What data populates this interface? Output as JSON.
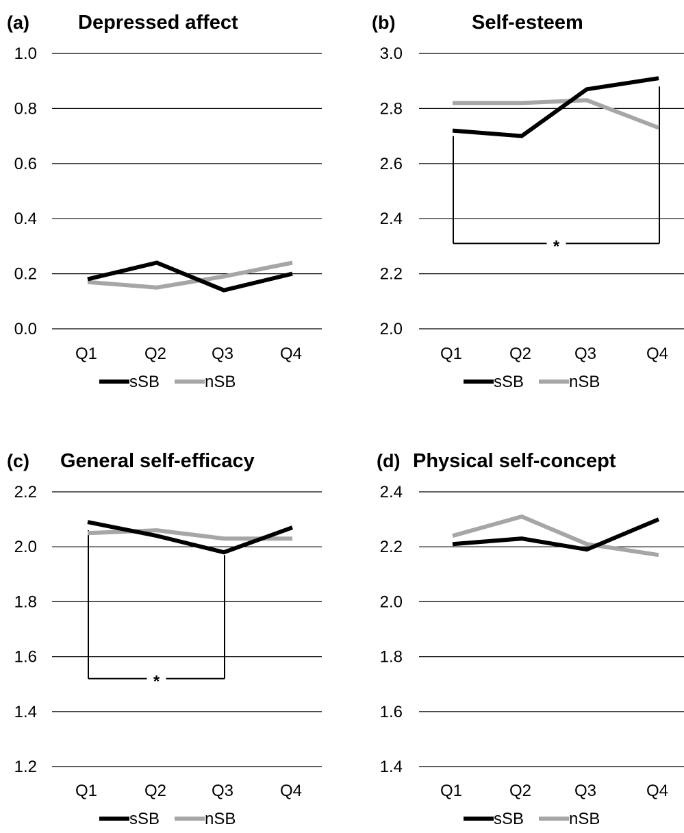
{
  "chart_data": [
    {
      "type": "line",
      "panel": "(a)",
      "title": "Depressed affect",
      "categories": [
        "Q1",
        "Q2",
        "Q3",
        "Q4"
      ],
      "ylim": [
        0.0,
        1.0
      ],
      "yticks": [
        "0.0",
        "0.2",
        "0.4",
        "0.6",
        "0.8",
        "1.0"
      ],
      "grid": true,
      "legend_position": "bottom",
      "series": [
        {
          "name": "sSB",
          "color": "#000000",
          "values": [
            0.18,
            0.24,
            0.14,
            0.2
          ]
        },
        {
          "name": "nSB",
          "color": "#a6a6a6",
          "values": [
            0.17,
            0.15,
            0.19,
            0.24
          ]
        }
      ],
      "significance": []
    },
    {
      "type": "line",
      "panel": "(b)",
      "title": "Self-esteem",
      "categories": [
        "Q1",
        "Q2",
        "Q3",
        "Q4"
      ],
      "ylim": [
        2.0,
        3.0
      ],
      "yticks": [
        "2.0",
        "2.2",
        "2.4",
        "2.6",
        "2.8",
        "3.0"
      ],
      "grid": true,
      "legend_position": "bottom",
      "series": [
        {
          "name": "sSB",
          "color": "#000000",
          "values": [
            2.72,
            2.7,
            2.87,
            2.91
          ]
        },
        {
          "name": "nSB",
          "color": "#a6a6a6",
          "values": [
            2.82,
            2.82,
            2.83,
            2.73
          ]
        }
      ],
      "significance": [
        {
          "from": 0,
          "to": 3,
          "label": "*",
          "y": 2.31,
          "top_from": 2.7,
          "top_to": 2.88
        }
      ]
    },
    {
      "type": "line",
      "panel": "(c)",
      "title": "General self-efficacy",
      "categories": [
        "Q1",
        "Q2",
        "Q3",
        "Q4"
      ],
      "ylim": [
        1.2,
        2.2
      ],
      "yticks": [
        "1.2",
        "1.4",
        "1.6",
        "1.8",
        "2.0",
        "2.2"
      ],
      "grid": true,
      "legend_position": "bottom",
      "series": [
        {
          "name": "sSB",
          "color": "#000000",
          "values": [
            2.09,
            2.04,
            1.98,
            2.07
          ]
        },
        {
          "name": "nSB",
          "color": "#a6a6a6",
          "values": [
            2.05,
            2.06,
            2.03,
            2.03
          ]
        }
      ],
      "significance": [
        {
          "from": 0,
          "to": 2,
          "label": "*",
          "y": 1.52,
          "top_from": 2.06,
          "top_to": 1.97
        }
      ]
    },
    {
      "type": "line",
      "panel": "(d)",
      "title": "Physical self-concept",
      "categories": [
        "Q1",
        "Q2",
        "Q3",
        "Q4"
      ],
      "ylim": [
        1.4,
        2.4
      ],
      "yticks": [
        "1.4",
        "1.6",
        "1.8",
        "2.0",
        "2.2",
        "2.4"
      ],
      "grid": true,
      "legend_position": "bottom",
      "series": [
        {
          "name": "sSB",
          "color": "#000000",
          "values": [
            2.21,
            2.23,
            2.19,
            2.3
          ]
        },
        {
          "name": "nSB",
          "color": "#a6a6a6",
          "values": [
            2.24,
            2.31,
            2.21,
            2.17
          ]
        }
      ],
      "significance": []
    }
  ]
}
